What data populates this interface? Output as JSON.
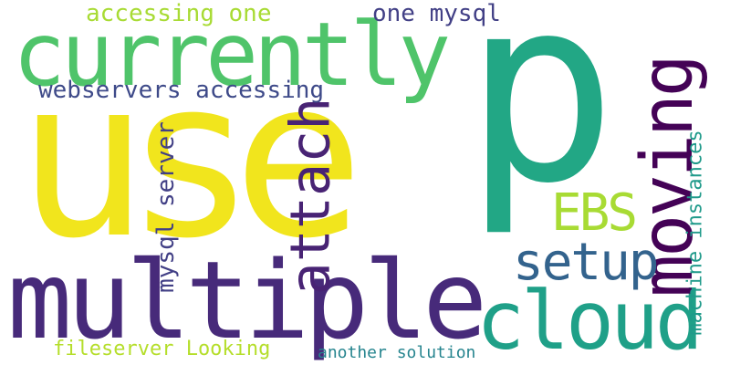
{
  "words": [
    {
      "key": "use",
      "text": "use",
      "color": "#f1e51d"
    },
    {
      "key": "p",
      "text": "p",
      "color": "#22a785"
    },
    {
      "key": "multiple",
      "text": "multiple",
      "color": "#472a7a"
    },
    {
      "key": "currently",
      "text": "currently",
      "color": "#4fc46a"
    },
    {
      "key": "cloud",
      "text": "cloud",
      "color": "#1fa088"
    },
    {
      "key": "moving",
      "text": "moving",
      "color": "#440256"
    },
    {
      "key": "attach",
      "text": "attach",
      "color": "#482374"
    },
    {
      "key": "setup",
      "text": "setup",
      "color": "#33638d"
    },
    {
      "key": "EBS",
      "text": "EBS",
      "color": "#a8db34"
    },
    {
      "key": "webservers_accessing",
      "text": "webservers accessing",
      "color": "#3e4a89"
    },
    {
      "key": "accessing_one",
      "text": "accessing one",
      "color": "#a8db34"
    },
    {
      "key": "one_mysql",
      "text": "one mysql",
      "color": "#424086"
    },
    {
      "key": "mysql_server",
      "text": "mysql server",
      "color": "#424086"
    },
    {
      "key": "machine_instances",
      "text": "machine instances",
      "color": "#1f9a8a"
    },
    {
      "key": "fileserver_looking",
      "text": "fileserver Looking",
      "color": "#b5de2b"
    },
    {
      "key": "another_solution",
      "text": "another solution",
      "color": "#25848e"
    }
  ]
}
